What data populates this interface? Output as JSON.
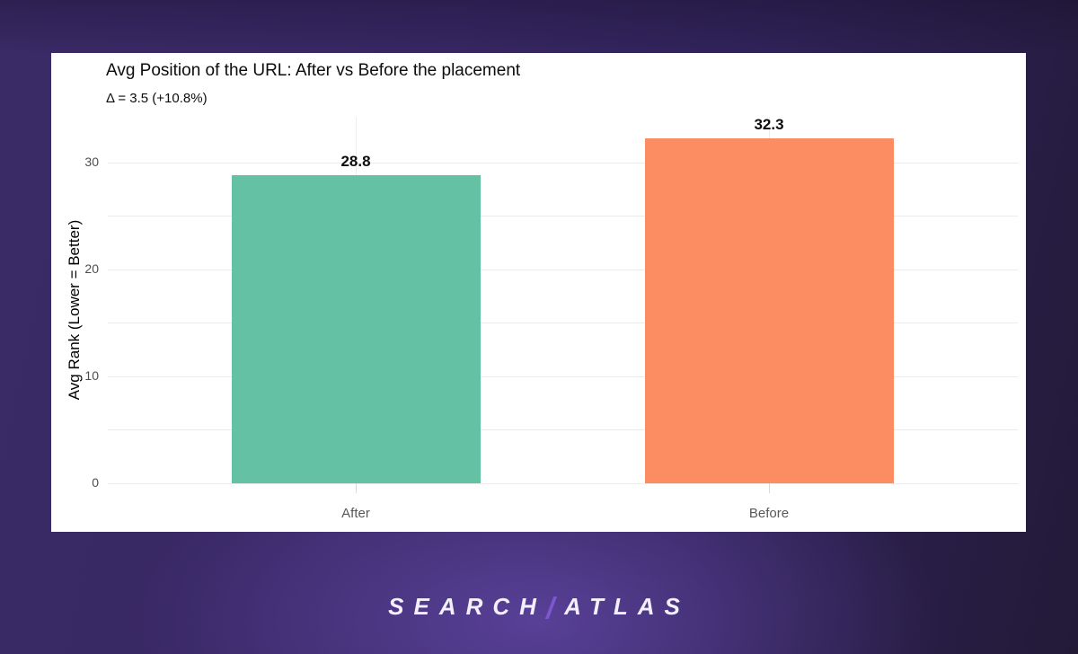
{
  "chart_data": {
    "type": "bar",
    "title": "Avg Position of the URL: After vs Before the placement",
    "subtitle": "Δ = 3.5 (+10.8%)",
    "delta": {
      "absolute": 3.5,
      "percent": "+10.8%"
    },
    "categories": [
      "After",
      "Before"
    ],
    "values": [
      28.8,
      32.3
    ],
    "value_labels": [
      "28.8",
      "32.3"
    ],
    "bar_colors": [
      "#65c1a3",
      "#fc8d62"
    ],
    "xlabel": "",
    "ylabel": "Avg Rank (Lower = Better)",
    "ylim": [
      0,
      34.3
    ],
    "yticks": [
      0,
      10,
      20,
      30
    ],
    "grid_step": 5,
    "grid": "on",
    "legend": "none",
    "background": "#ffffff"
  },
  "page": {
    "background_accent": "#3a2a66",
    "background_dark": "#231a38"
  },
  "watermark": {
    "search": "SEARCH",
    "slash": "/",
    "atlas": "ATLAS"
  }
}
